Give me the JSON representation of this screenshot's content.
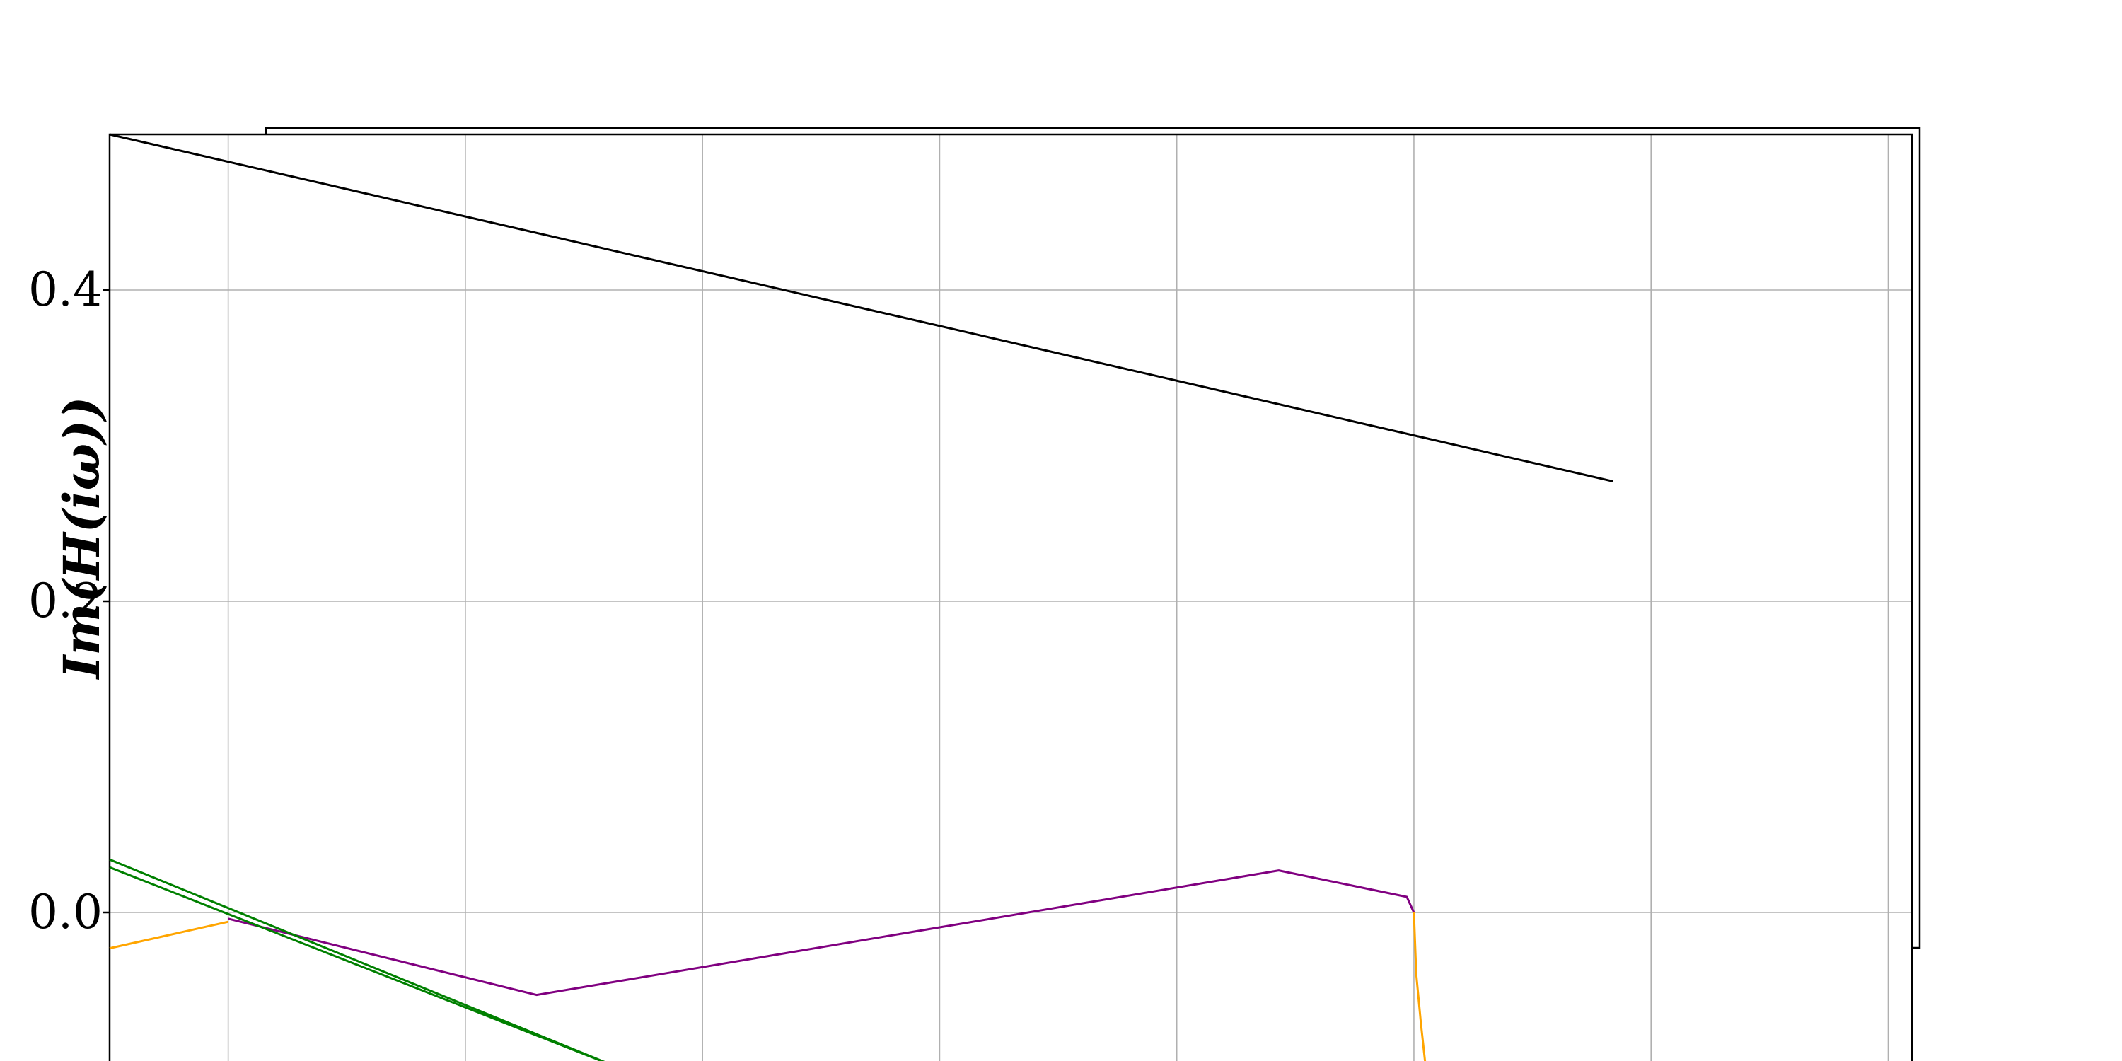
{
  "chart_data": {
    "type": "line",
    "ylabel": "Im(H(iω))",
    "xlabel": "",
    "title": "",
    "grid": true,
    "ylim": [
      -0.1,
      0.5
    ],
    "xlim": [
      0,
      7.6
    ],
    "yticks": [
      0.0,
      0.2,
      0.4
    ],
    "ytick_labels": [
      "0.0",
      "0.2",
      "0.4"
    ],
    "xticks": [
      0.5,
      1.5,
      2.5,
      3.5,
      4.5,
      5.5,
      6.5,
      7.5
    ],
    "series": [
      {
        "color": "#000000",
        "x": [
          0,
          6.34
        ],
        "y": [
          0.5,
          0.277
        ]
      },
      {
        "color": "#800080",
        "x": [
          0.5,
          1.8,
          4.93,
          5.47,
          5.5
        ],
        "y": [
          -0.004,
          -0.053,
          0.027,
          0.01,
          0.0
        ]
      },
      {
        "color": "#ffa500",
        "x": [
          0,
          0.5
        ],
        "y": [
          -0.023,
          -0.006
        ]
      },
      {
        "color": "#ffa500",
        "x": [
          5.5,
          5.51,
          5.53,
          5.55
        ],
        "y": [
          0.0,
          -0.04,
          -0.072,
          -0.1
        ]
      },
      {
        "color": "#008000",
        "x": [
          0,
          2.15
        ],
        "y": [
          0.034,
          -0.1
        ]
      },
      {
        "color": "#008000",
        "x": [
          0,
          2.15
        ],
        "y": [
          0.029,
          -0.1
        ]
      }
    ]
  }
}
